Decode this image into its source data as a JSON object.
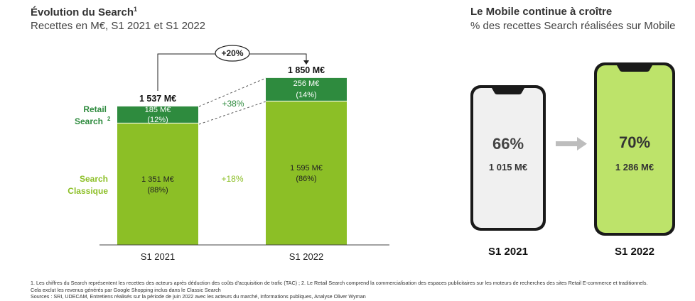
{
  "left": {
    "title": "Évolution du Search",
    "title_sup": "1",
    "subtitle": "Recettes en M€, S1 2021 et S1 2022",
    "label_retail": "Retail",
    "label_retail2": "Search",
    "label_retail_sup": "2",
    "label_classic": "Search",
    "label_classic2": "Classique",
    "growth_total": "+20%",
    "growth_retail": "+38%",
    "growth_classic": "+18%",
    "totals": [
      "1 537 M€",
      "1 850 M€"
    ],
    "retail_labels": [
      "185 M€",
      "256 M€"
    ],
    "retail_pct": [
      "(12%)",
      "(14%)"
    ],
    "classic_labels": [
      "1 351 M€",
      "1 595 M€"
    ],
    "classic_pct": [
      "(88%)",
      "(86%)"
    ]
  },
  "right": {
    "title": "Le Mobile continue à croître",
    "subtitle": "% des recettes Search réalisées sur Mobile",
    "phones": [
      {
        "period": "S1 2021",
        "pct": "66%",
        "value": "1 015 M€"
      },
      {
        "period": "S1 2022",
        "pct": "70%",
        "value": "1 286 M€"
      }
    ]
  },
  "footnotes": [
    "1. Les chiffres du Search représentent les recettes des acteurs après déduction des coûts d'acquisition de trafic (TAC) ; 2. Le Retail Search comprend la commercialisation des espaces publicitaires sur les moteurs de recherches des sites Retail E-commerce et traditionnels.",
    "Cela exclut les revenus générés par Google Shopping inclus dans le Classic Search",
    "Sources : SRI, UDECAM, Entretiens réalisés sur la période de juin 2022 avec les acteurs du marché, Informations publiques, Analyse Oliver Wyman"
  ],
  "colors": {
    "classic": "#8cbf26",
    "retail": "#2e8b3e",
    "phone_light": "#f0f0f0",
    "phone_green": "#bde36a",
    "phone_frame": "#1a1a1a",
    "arrow": "#bdbdbd"
  },
  "chart_data": {
    "type": "bar",
    "stacked": true,
    "title": "Évolution du Search",
    "subtitle": "Recettes en M€, S1 2021 et S1 2022",
    "categories": [
      "S1 2021",
      "S1 2022"
    ],
    "series": [
      {
        "name": "Search Classique",
        "values": [
          1351,
          1595
        ]
      },
      {
        "name": "Retail Search",
        "values": [
          185,
          256
        ]
      }
    ],
    "totals": [
      1537,
      1850
    ],
    "ylim": [
      0,
      1850
    ],
    "legend": "left"
  }
}
